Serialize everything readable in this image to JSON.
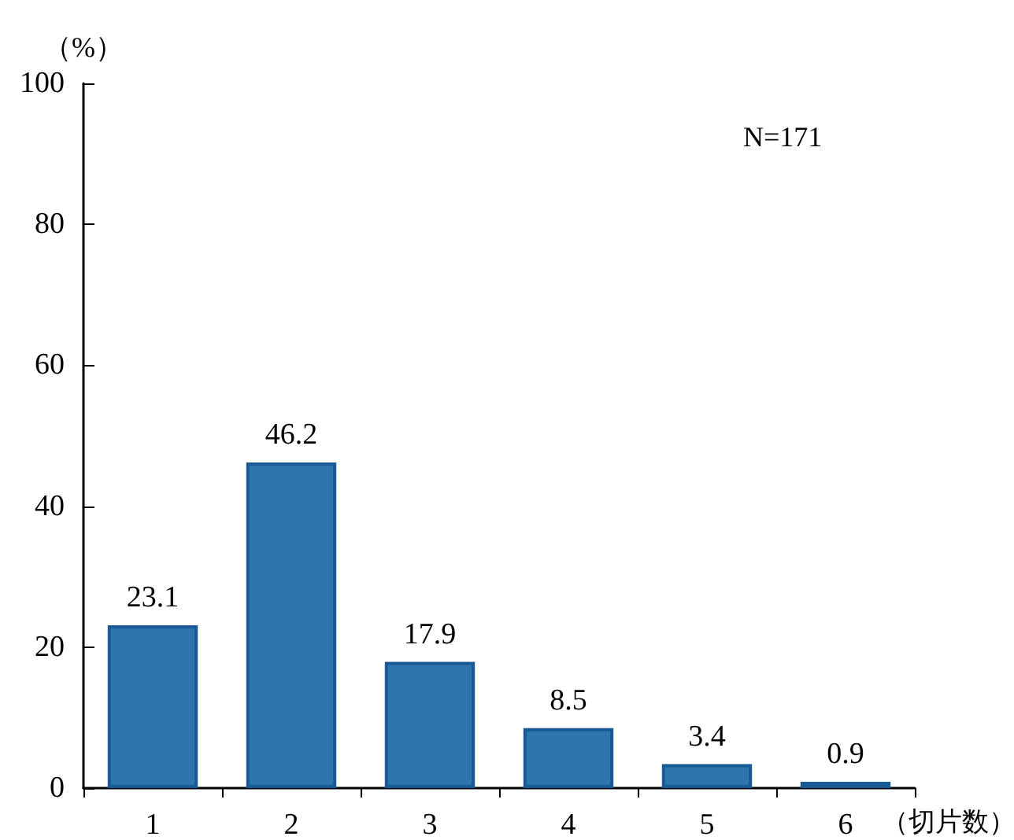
{
  "chart_data": {
    "type": "bar",
    "ylabel": "（%）",
    "xlabel": "（切片数）",
    "categories": [
      "1",
      "2",
      "3",
      "4",
      "5",
      "6"
    ],
    "values": [
      23.1,
      46.2,
      17.9,
      8.5,
      3.4,
      0.9
    ],
    "color": "#2e75ad",
    "data_labels": true,
    "ylim": [
      0,
      100
    ],
    "yticks": [
      0,
      20,
      40,
      60,
      80,
      100
    ],
    "annotations": [
      "N=171"
    ]
  }
}
